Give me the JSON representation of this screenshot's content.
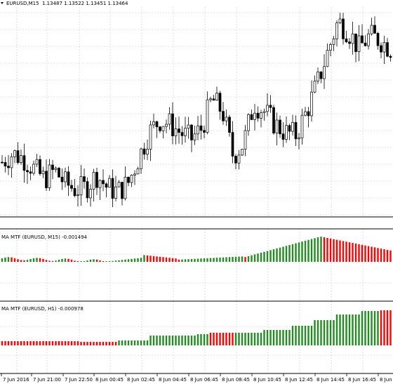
{
  "main_header": {
    "symbol": "EURUSD,M15",
    "ohlc": "1.13487 1.13522 1.13451 1.13464"
  },
  "indicator1": {
    "title": "MA MTF (EURUSD, M15) -0.001494"
  },
  "indicator2": {
    "title": "MA MTF (EURUSD, H1) -0.000978"
  },
  "x_axis_labels": [
    "7 Jun 2016",
    "7 Jun 21:00",
    "7 Jun 22:50",
    "8 Jun 00:45",
    "8 Jun 02:45",
    "8 Jun 04:45",
    "8 Jun 06:45",
    "8 Jun 08:45",
    "8 Jun 10:45",
    "8 Jun 12:45",
    "8 Jun 14:45",
    "8 Jun 16:45",
    "8 Jun"
  ],
  "colors": {
    "background": "#ffffff",
    "grid": "#c8c8c8",
    "candle_bull": "#ffffff",
    "candle_bear": "#000000",
    "bar_up": "#228b22",
    "bar_down": "#ff0000"
  },
  "chart_data": [
    {
      "type": "candlestick",
      "title": "EURUSD,M15",
      "ohlc_last": [
        1.13487,
        1.13522,
        1.13451,
        1.13464
      ],
      "ylim": [
        1.1325,
        1.1415
      ],
      "trend_closes": [
        1.1348,
        1.1352,
        1.135,
        1.1345,
        1.134,
        1.1344,
        1.1338,
        1.1335,
        1.1336,
        1.1342,
        1.1336,
        1.1334,
        1.1338,
        1.135,
        1.1362,
        1.1368,
        1.1366,
        1.1362,
        1.1359,
        1.1364,
        1.1378,
        1.1372,
        1.1351,
        1.1357,
        1.1376,
        1.1372,
        1.1366,
        1.1362,
        1.1361,
        1.1372,
        1.1385,
        1.14,
        1.1415,
        1.141,
        1.1402,
        1.1408,
        1.1406,
        1.1402
      ],
      "grid": true
    },
    {
      "type": "bar",
      "title": "MA MTF (EURUSD, M15) -0.001494",
      "last_value": -0.001494,
      "series_color_rule": "green rising, red falling"
    },
    {
      "type": "bar",
      "title": "MA MTF (EURUSD, H1) -0.000978",
      "last_value": -0.000978,
      "series_color_rule": "green rising, red falling"
    }
  ]
}
